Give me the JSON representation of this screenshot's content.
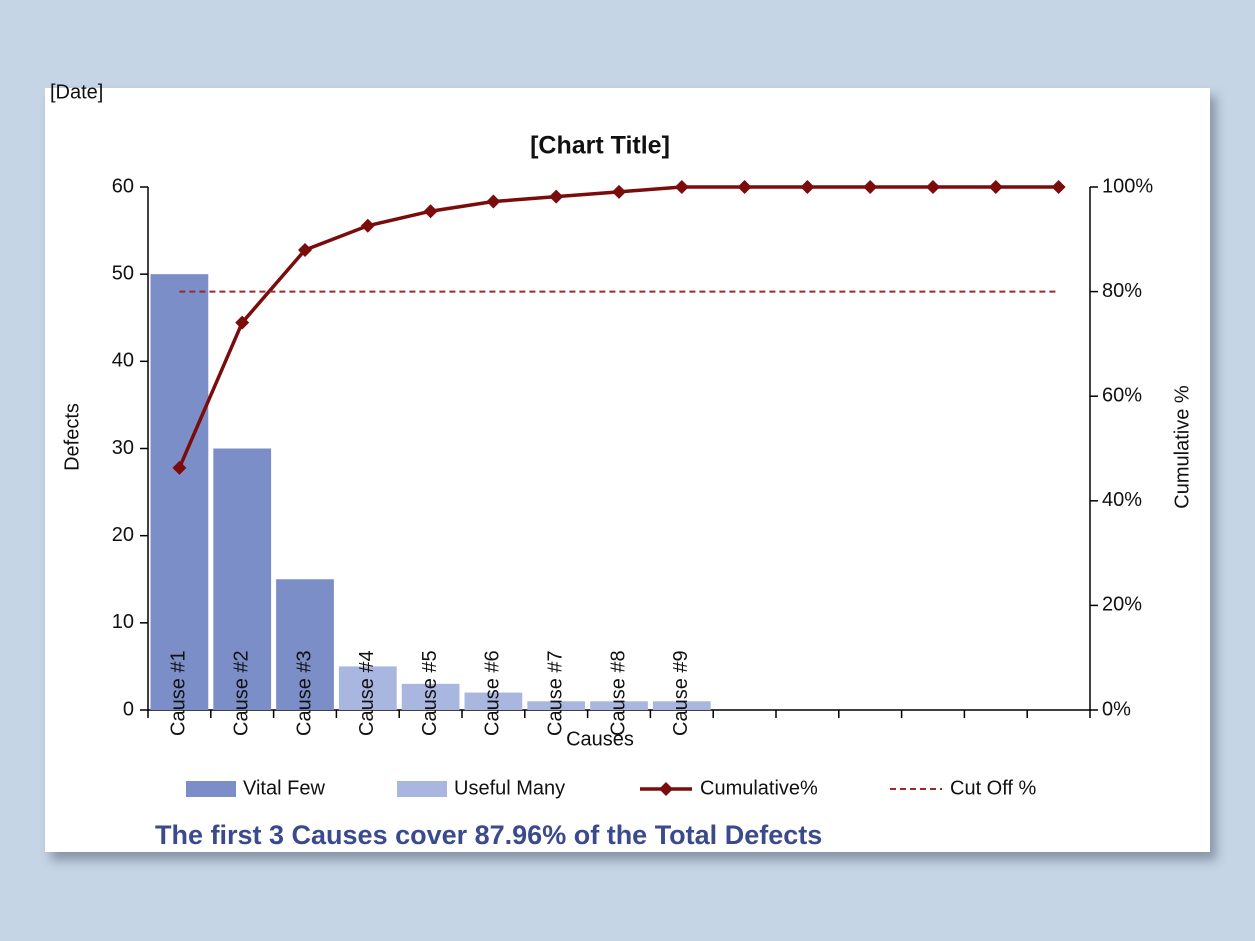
{
  "chart_data": {
    "type": "bar",
    "title": "[Chart Title]",
    "date": "[Date]",
    "x_label": "Causes",
    "y_label": "Defects",
    "y2_label": "Cumulative %",
    "annotation": "The first 3 Causes cover 87.96% of the Total Defects",
    "categories": [
      "Cause #1",
      "Cause #2",
      "Cause #3",
      "Cause #4",
      "Cause #5",
      "Cause #6",
      "Cause #7",
      "Cause #8",
      "Cause #9",
      null,
      null,
      null,
      null,
      null,
      null
    ],
    "series": [
      {
        "name": "Vital Few",
        "color": "#7b8ec8",
        "kind": "bar",
        "values": [
          50,
          30,
          15,
          null,
          null,
          null,
          null,
          null,
          null,
          null,
          null,
          null,
          null,
          null,
          null
        ]
      },
      {
        "name": "Useful Many",
        "color": "#a9b7e0",
        "kind": "bar",
        "values": [
          null,
          null,
          null,
          5,
          3,
          2,
          1,
          1,
          1,
          0,
          0,
          0,
          0,
          0,
          0
        ]
      },
      {
        "name": "Cumulative%",
        "color": "#7a0c0c",
        "kind": "line",
        "marker": "diamond",
        "axis": "y2",
        "values": [
          46.3,
          74.07,
          87.96,
          92.59,
          95.37,
          97.22,
          98.15,
          99.07,
          100,
          100,
          100,
          100,
          100,
          100,
          100
        ]
      },
      {
        "name": "Cut Off %",
        "color": "#9b2a2a",
        "kind": "line",
        "dashed": true,
        "axis": "y2",
        "values": [
          80,
          80,
          80,
          80,
          80,
          80,
          80,
          80,
          80,
          80,
          80,
          80,
          80,
          80,
          80
        ]
      }
    ],
    "ylim": [
      0,
      60
    ],
    "yticks": [
      0,
      10,
      20,
      30,
      40,
      50,
      60
    ],
    "y2lim": [
      0,
      100
    ],
    "y2ticks": [
      {
        "value": 0,
        "label": "0%"
      },
      {
        "value": 20,
        "label": "20%"
      },
      {
        "value": 40,
        "label": "40%"
      },
      {
        "value": 60,
        "label": "60%"
      },
      {
        "value": 80,
        "label": "80%"
      },
      {
        "value": 100,
        "label": "100%"
      }
    ],
    "grid": false
  }
}
